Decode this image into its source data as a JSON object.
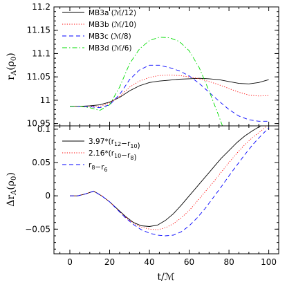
{
  "chart_data": [
    {
      "type": "line",
      "ylabel": "r_A(ρ_0)",
      "xlim": [
        -8,
        105
      ],
      "ylim": [
        10.945,
        11.2
      ],
      "xticks": [
        "0",
        "20",
        "40",
        "60",
        "80",
        "100"
      ],
      "xtick_values": [
        0,
        20,
        40,
        60,
        80,
        100
      ],
      "yticks": [
        "10.95",
        "11",
        "11.05",
        "11.1",
        "11.15",
        "11.2"
      ],
      "ytick_values": [
        10.95,
        11.0,
        11.05,
        11.1,
        11.15,
        11.2
      ],
      "legend_position": "top-left",
      "series": [
        {
          "name": "MB3a (ℳ/12)",
          "color": "#000000",
          "dash": "solid",
          "x": [
            0,
            5,
            10,
            15,
            20,
            25,
            30,
            35,
            40,
            45,
            50,
            55,
            60,
            65,
            70,
            75,
            80,
            85,
            90,
            95,
            100
          ],
          "y": [
            10.987,
            10.987,
            10.988,
            10.99,
            10.996,
            11.006,
            11.02,
            11.031,
            11.038,
            11.041,
            11.043,
            11.045,
            11.046,
            11.047,
            11.046,
            11.044,
            11.04,
            11.036,
            11.035,
            11.038,
            11.044
          ]
        },
        {
          "name": "MB3b (ℳ/10)",
          "color": "#ff0000",
          "dash": "dotted",
          "x": [
            0,
            5,
            10,
            15,
            20,
            25,
            30,
            35,
            40,
            45,
            50,
            55,
            60,
            65,
            70,
            75,
            80,
            85,
            90,
            95,
            100
          ],
          "y": [
            10.987,
            10.987,
            10.987,
            10.987,
            10.994,
            11.008,
            11.028,
            11.041,
            11.049,
            11.053,
            11.054,
            11.053,
            11.05,
            11.046,
            11.04,
            11.033,
            11.025,
            11.017,
            11.011,
            11.009,
            11.01
          ]
        },
        {
          "name": "MB3c (ℳ/8)",
          "color": "#0000ff",
          "dash": "dashed",
          "x": [
            0,
            5,
            10,
            15,
            20,
            25,
            30,
            35,
            40,
            45,
            50,
            55,
            60,
            65,
            70,
            75,
            80,
            85,
            90,
            95,
            100
          ],
          "y": [
            10.987,
            10.987,
            10.986,
            10.984,
            10.99,
            11.012,
            11.044,
            11.065,
            11.075,
            11.075,
            11.07,
            11.063,
            11.052,
            11.036,
            11.017,
            10.998,
            10.98,
            10.966,
            10.958,
            10.955,
            10.955
          ]
        },
        {
          "name": "MB3d (ℳ/6)",
          "color": "#00dd00",
          "dash": "dashdot",
          "x": [
            0,
            5,
            10,
            15,
            20,
            25,
            30,
            35,
            40,
            45,
            50,
            55,
            60,
            65,
            70,
            75,
            78
          ],
          "y": [
            10.987,
            10.987,
            10.984,
            10.978,
            10.99,
            11.028,
            11.078,
            11.11,
            11.128,
            11.135,
            11.134,
            11.126,
            11.106,
            11.07,
            11.02,
            10.965,
            10.93
          ]
        }
      ]
    },
    {
      "type": "line",
      "xlabel": "t/ℳ",
      "ylabel": "Δr_A(ρ_0)",
      "xlim": [
        -8,
        105
      ],
      "ylim": [
        -0.087,
        0.105
      ],
      "xticks": [
        "0",
        "20",
        "40",
        "60",
        "80",
        "100"
      ],
      "xtick_values": [
        0,
        20,
        40,
        60,
        80,
        100
      ],
      "yticks": [
        "−0.05",
        "0",
        "0.05",
        "0.1"
      ],
      "ytick_values": [
        -0.05,
        0,
        0.05,
        0.1
      ],
      "legend_position": "top-left",
      "series": [
        {
          "name": "3.97*(r_12−r_10)",
          "color": "#000000",
          "dash": "solid",
          "x": [
            0,
            4,
            8,
            12,
            16,
            20,
            24,
            28,
            32,
            36,
            40,
            44,
            48,
            52,
            56,
            60,
            64,
            68,
            72,
            76,
            80,
            84,
            88,
            92,
            96
          ],
          "y": [
            0.0,
            0.0,
            0.003,
            0.007,
            0.0,
            -0.009,
            -0.02,
            -0.031,
            -0.04,
            -0.045,
            -0.046,
            -0.044,
            -0.037,
            -0.027,
            -0.014,
            0.0,
            0.014,
            0.028,
            0.042,
            0.056,
            0.068,
            0.08,
            0.09,
            0.098,
            0.105
          ]
        },
        {
          "name": "2.16*(r_10−r_8)",
          "color": "#ff0000",
          "dash": "dotted",
          "x": [
            0,
            4,
            8,
            12,
            16,
            20,
            24,
            28,
            32,
            36,
            40,
            44,
            48,
            52,
            56,
            60,
            64,
            68,
            72,
            76,
            80,
            84,
            88,
            92,
            96,
            99
          ],
          "y": [
            0.0,
            0.0,
            0.003,
            0.007,
            0.0,
            -0.009,
            -0.021,
            -0.032,
            -0.041,
            -0.047,
            -0.05,
            -0.051,
            -0.048,
            -0.042,
            -0.033,
            -0.022,
            -0.008,
            0.006,
            0.02,
            0.035,
            0.05,
            0.064,
            0.077,
            0.088,
            0.097,
            0.105
          ]
        },
        {
          "name": "r_8−r_6",
          "color": "#0000ff",
          "dash": "dashed",
          "x": [
            0,
            4,
            8,
            12,
            16,
            20,
            24,
            28,
            32,
            36,
            40,
            44,
            48,
            52,
            56,
            60,
            64,
            68,
            72,
            76,
            80,
            84,
            88,
            92,
            96,
            100
          ],
          "y": [
            0.0,
            0.0,
            0.003,
            0.007,
            0.0,
            -0.009,
            -0.021,
            -0.033,
            -0.043,
            -0.051,
            -0.056,
            -0.059,
            -0.06,
            -0.059,
            -0.054,
            -0.045,
            -0.033,
            -0.019,
            -0.003,
            0.013,
            0.03,
            0.046,
            0.062,
            0.077,
            0.09,
            0.102
          ]
        }
      ]
    }
  ]
}
